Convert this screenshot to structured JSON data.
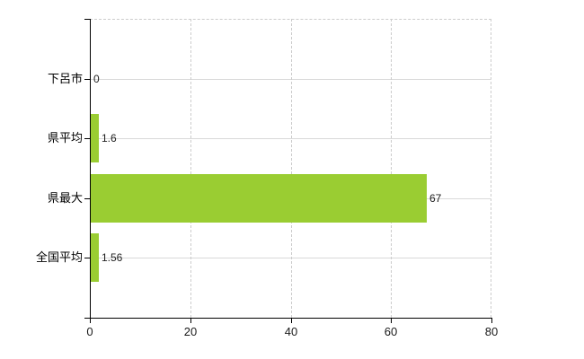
{
  "chart_data": {
    "type": "bar",
    "orientation": "horizontal",
    "title": "",
    "categories": [
      "下呂市",
      "県平均",
      "県最大",
      "全国平均"
    ],
    "values": [
      0,
      1.6,
      67,
      1.56
    ],
    "value_labels": [
      "0",
      "1.6",
      "67",
      "1.56"
    ],
    "x_ticks": [
      0,
      20,
      40,
      60,
      80
    ],
    "x_tick_labels": [
      "0",
      "20",
      "40",
      "60",
      "80"
    ],
    "xlim": [
      0,
      80
    ],
    "xlabel": "",
    "ylabel": "",
    "grid": true,
    "legend": false,
    "bar_color": "#9acd32",
    "grid_color": "#d9d9d9",
    "axis_color": "#000000",
    "text_color": "#222222",
    "background": "#ffffff"
  }
}
